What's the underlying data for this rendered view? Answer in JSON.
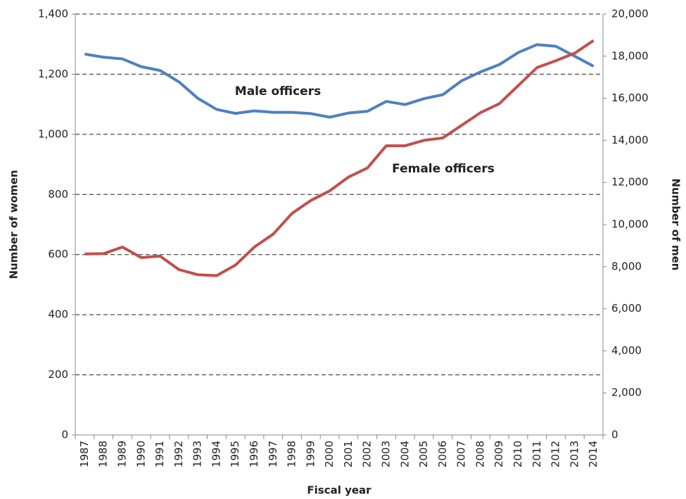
{
  "chart_data": {
    "type": "line",
    "categories": [
      "1987",
      "1988",
      "1989",
      "1990",
      "1991",
      "1992",
      "1993",
      "1994",
      "1995",
      "1996",
      "1997",
      "1998",
      "1999",
      "2000",
      "2001",
      "2002",
      "2003",
      "2004",
      "2005",
      "2006",
      "2007",
      "2008",
      "2009",
      "2010",
      "2011",
      "2012",
      "2013",
      "2014"
    ],
    "series": [
      {
        "name": "Male officers",
        "color": "#4f81bd",
        "axis": "y2",
        "values": [
          18100,
          17950,
          17870,
          17500,
          17320,
          16780,
          16000,
          15470,
          15280,
          15400,
          15330,
          15330,
          15270,
          15100,
          15300,
          15380,
          15850,
          15700,
          15980,
          16170,
          16830,
          17250,
          17600,
          18170,
          18550,
          18470,
          18000,
          17520
        ]
      },
      {
        "name": "Female officers",
        "color": "#c0504d",
        "values": [
          602,
          603,
          625,
          590,
          595,
          550,
          533,
          530,
          565,
          625,
          668,
          737,
          780,
          812,
          858,
          888,
          962,
          962,
          980,
          988,
          1030,
          1072,
          1102,
          1162,
          1222,
          1245,
          1270,
          1312
        ]
      }
    ],
    "xlabel": "Fiscal year",
    "ylabel": "Number of women",
    "y2label": "Number of men",
    "ylim": [
      0,
      1400
    ],
    "yticks": [
      0,
      200,
      400,
      600,
      800,
      {
        "value": 1000,
        "label": "1,000"
      },
      {
        "value": 1200,
        "label": "1,200"
      },
      {
        "value": 1400,
        "label": "1,400"
      }
    ],
    "y2lim": [
      0,
      20000
    ],
    "y2ticks": [
      0,
      {
        "value": 2000,
        "label": "2,000"
      },
      {
        "value": 4000,
        "label": "4,000"
      },
      {
        "value": 6000,
        "label": "6,000"
      },
      {
        "value": 8000,
        "label": "8,000"
      },
      {
        "value": 10000,
        "label": "10,000"
      },
      {
        "value": 12000,
        "label": "12,000"
      },
      {
        "value": 14000,
        "label": "14,000"
      },
      {
        "value": 16000,
        "label": "16,000"
      },
      {
        "value": 18000,
        "label": "18,000"
      },
      {
        "value": 20000,
        "label": "20,000"
      }
    ],
    "grid": true
  }
}
